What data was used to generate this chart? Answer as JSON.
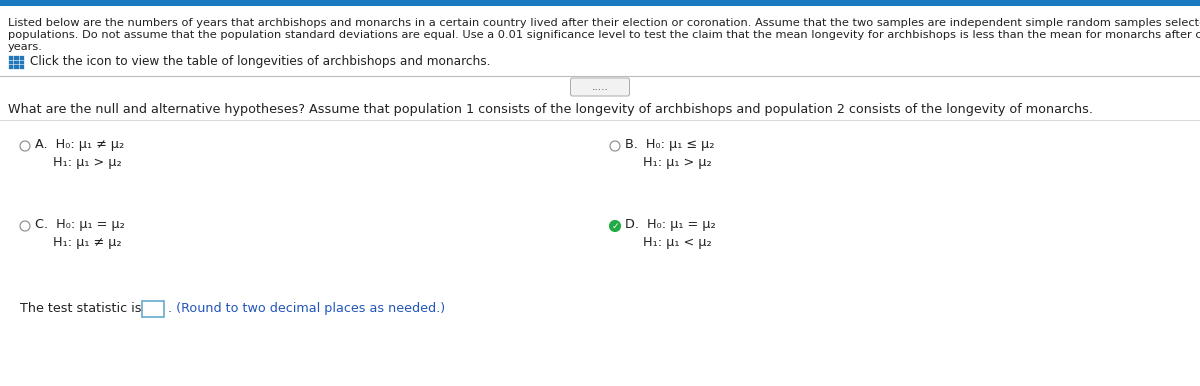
{
  "top_bar_color": "#1a7abf",
  "bg_color": "#ffffff",
  "header_line1": "Listed below are the numbers of years that archbishops and monarchs in a certain country lived after their election or coronation. Assume that the two samples are independent simple random samples selected from normally distributed",
  "header_line2": "populations. Do not assume that the population standard deviations are equal. Use a 0.01 significance level to test the claim that the mean longevity for archbishops is less than the mean for monarchs after coronation. All measurements are in",
  "header_line3": "years.",
  "icon_text": "Click the icon to view the table of longevities of archbishops and monarchs.",
  "dots_label": ".....",
  "question_text": "What are the null and alternative hypotheses? Assume that population 1 consists of the longevity of archbishops and population 2 consists of the longevity of monarchs.",
  "option_A_label": "A.",
  "option_A_line1": "H₀: μ₁ ≠ μ₂",
  "option_A_line2": "H₁: μ₁ > μ₂",
  "option_B_label": "B.",
  "option_B_line1": "H₀: μ₁ ≤ μ₂",
  "option_B_line2": "H₁: μ₁ > μ₂",
  "option_C_label": "C.",
  "option_C_line1": "H₀: μ₁ = μ₂",
  "option_C_line2": "H₁: μ₁ ≠ μ₂",
  "option_D_label": "D.",
  "option_D_line1": "H₀: μ₁ = μ₂",
  "option_D_line2": "H₁: μ₁ < μ₂",
  "test_stat_text": "The test statistic is",
  "round_note": "(Round to two decimal places as needed.)",
  "header_fontsize": 8.2,
  "body_fontsize": 9.2,
  "option_fontsize": 9.2,
  "small_fontsize": 7.5,
  "divider_color": "#bbbbbb",
  "label_color": "#222222",
  "blue_link_color": "#2255bb",
  "check_color": "#22aa44",
  "icon_bg": "#2277bb",
  "radio_color": "#888888",
  "box_border_color": "#66aacc"
}
